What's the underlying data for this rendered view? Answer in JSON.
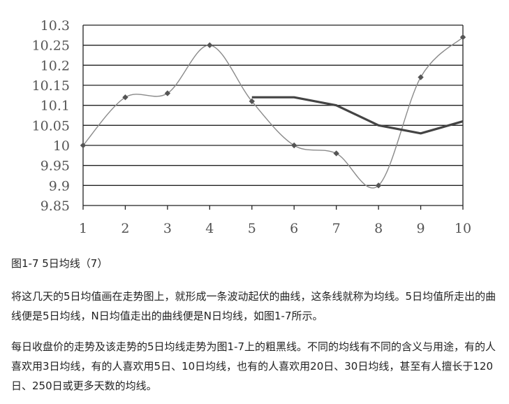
{
  "chart_data": {
    "type": "line",
    "x": [
      1,
      2,
      3,
      4,
      5,
      6,
      7,
      8,
      9,
      10
    ],
    "series": [
      {
        "values": [
          10.0,
          10.12,
          10.13,
          10.25,
          10.11,
          10.0,
          9.98,
          9.9,
          10.17,
          10.27
        ],
        "color": "#8a8a8a",
        "markers": "diamond",
        "style": "thin smooth"
      },
      {
        "x": [
          5,
          6,
          7,
          8,
          9,
          10
        ],
        "values": [
          10.12,
          10.12,
          10.1,
          10.05,
          10.03,
          10.06
        ],
        "color": "#444444",
        "style": "thick"
      }
    ],
    "ylim": [
      9.85,
      10.3
    ],
    "yticks": [
      "10.3",
      "10.25",
      "10.2",
      "10.15",
      "10.1",
      "10.05",
      "10",
      "9.95",
      "9.9",
      "9.85"
    ],
    "xticks": [
      "1",
      "2",
      "3",
      "4",
      "5",
      "6",
      "7",
      "8",
      "9",
      "10"
    ],
    "grid": "horizontal"
  },
  "caption": "图1-7 5日均线（7）",
  "paragraphs": [
    "将这几天的5日均值画在走势图上，就形成一条波动起伏的曲线，这条线就称为均线。5日均值所走出的曲线便是5日均线，N日均值走出的曲线便是N日均线，如图1-7所示。",
    "每日收盘价的走势及该走势的5日均线走势为图1-7上的粗黑线。不同的均线有不同的含义与用途，有的人喜欢用3日均线，有的人喜欢用5日、10日均线，也有的人喜欢用20日、30日均线，甚至有人擅长于120日、250日或更多天数的均线。"
  ]
}
